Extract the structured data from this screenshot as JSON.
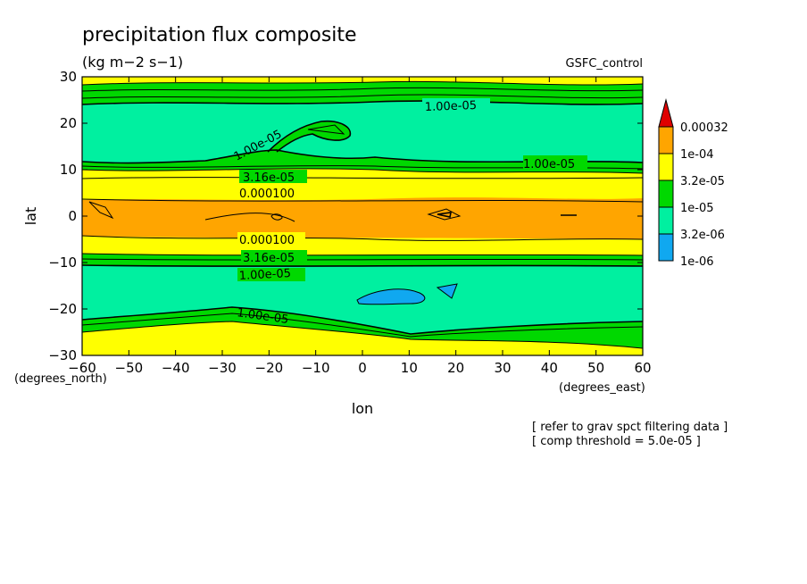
{
  "chart_data": {
    "type": "contour",
    "title": "precipitation flux composite",
    "units": "(kg m−2 s−1)",
    "experiment": "GSFC_control",
    "xlabel": "lon",
    "ylabel": "lat",
    "x_unit": "(degrees_east)",
    "y_unit": "(degrees_north)",
    "xlim": [
      -60,
      60
    ],
    "ylim": [
      -30,
      30
    ],
    "x_ticks": [
      "−60",
      "−50",
      "−40",
      "−30",
      "−20",
      "−10",
      "0",
      "10",
      "20",
      "30",
      "40",
      "50",
      "60"
    ],
    "y_ticks": [
      "30",
      "20",
      "10",
      "0",
      "−10",
      "−20",
      "−30"
    ],
    "colorbar": {
      "labels": [
        "0.00032",
        "1e-04",
        "3.2e-05",
        "1e-05",
        "3.2e-06",
        "1e-06"
      ],
      "colors": [
        "#e00000",
        "#ffa500",
        "#ffff00",
        "#00d800",
        "#00f0a0",
        "#10a8f0"
      ]
    },
    "contour_labels": [
      "1.00e-05",
      "1.00e-05",
      "1.00e-05",
      "3.16e-05",
      "0.000100",
      "0.000100",
      "3.16e-05",
      "1.00e-05",
      "1.00e-05"
    ],
    "notes": [
      "[ refer to grav spct filtering data ]",
      "[ comp threshold = 5.0e-05 ]"
    ],
    "band_profile": [
      {
        "lat": 30,
        "value": 3.2e-05
      },
      {
        "lat": 25,
        "value": 1e-05
      },
      {
        "lat": 12,
        "value": 3.2e-05
      },
      {
        "lat": 8,
        "value": 0.0001
      },
      {
        "lat": 0,
        "value": 0.00032
      },
      {
        "lat": -8,
        "value": 3.2e-05
      },
      {
        "lat": -20,
        "value": 1e-05
      },
      {
        "lat": -28,
        "value": 3.2e-05
      }
    ]
  }
}
